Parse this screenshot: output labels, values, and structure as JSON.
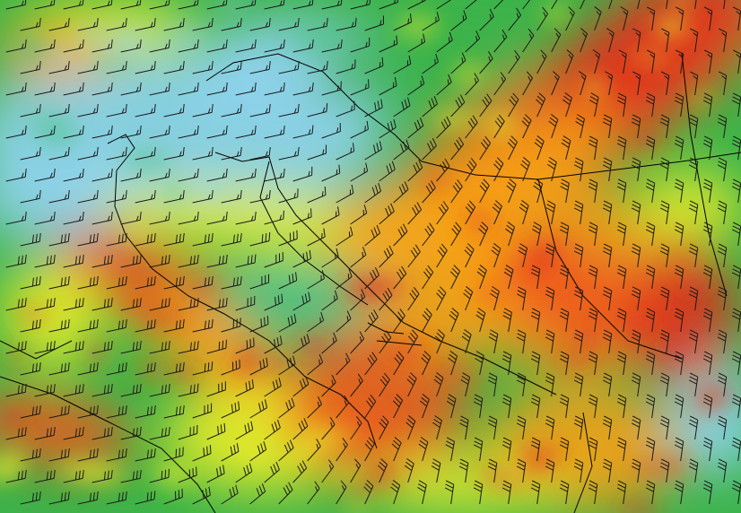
{
  "map": {
    "kind": "wind-speed-field-with-wind-barbs",
    "palette": {
      "calm": "#8fd3ee",
      "light": "#4fc28a",
      "moderate": "#3cb34a",
      "fresh": "#e8ec2a",
      "strong": "#f6a019",
      "gale": "#ee5a1c",
      "storm": "#e0301e"
    },
    "barb_color": "#1a1a1a",
    "border_color": "#000000"
  }
}
